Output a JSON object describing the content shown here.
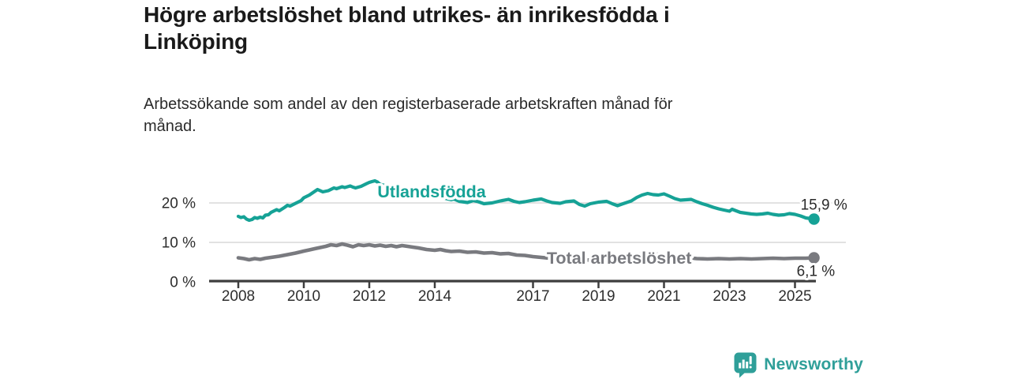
{
  "chart_data": {
    "type": "line",
    "title": "Högre arbetslöshet bland utrikes- än inrikesfödda i\nLinköping",
    "subtitle": "Arbetssökande som andel av den registerbaserade arbetskraften månad för\nmånad.",
    "grid": "horizontal",
    "legend": "inline-labels",
    "x_axis": {
      "ticks": [
        2008,
        2010,
        2012,
        2014,
        2017,
        2019,
        2021,
        2023,
        2025
      ],
      "labels": [
        "2008",
        "2010",
        "2012",
        "2014",
        "2017",
        "2019",
        "2021",
        "2023",
        "2025"
      ],
      "range": [
        2007.1,
        2025.9
      ]
    },
    "y_axis": {
      "ticks": [
        0,
        10,
        20
      ],
      "labels": [
        "0 %",
        "10 %",
        "20 %"
      ],
      "range": [
        0,
        27
      ],
      "unit": "%"
    },
    "series": [
      {
        "name": "Utlandsfödda",
        "color": "#16a296",
        "end_value": 15.9,
        "end_label": "15,9 %",
        "label_anchor": {
          "year": 2012.25,
          "value": 21.4
        },
        "end_label_offset": [
          -17,
          -12
        ],
        "points": [
          [
            2008.0,
            16.6
          ],
          [
            2008.08,
            16.3
          ],
          [
            2008.17,
            16.5
          ],
          [
            2008.25,
            15.9
          ],
          [
            2008.33,
            15.6
          ],
          [
            2008.42,
            15.8
          ],
          [
            2008.5,
            16.3
          ],
          [
            2008.58,
            16.1
          ],
          [
            2008.67,
            16.4
          ],
          [
            2008.75,
            16.2
          ],
          [
            2008.83,
            16.9
          ],
          [
            2008.92,
            17.0
          ],
          [
            2009.0,
            17.6
          ],
          [
            2009.17,
            18.3
          ],
          [
            2009.25,
            18.0
          ],
          [
            2009.42,
            18.9
          ],
          [
            2009.5,
            19.4
          ],
          [
            2009.58,
            19.2
          ],
          [
            2009.75,
            19.9
          ],
          [
            2009.92,
            20.6
          ],
          [
            2010.0,
            21.3
          ],
          [
            2010.17,
            22.0
          ],
          [
            2010.33,
            22.9
          ],
          [
            2010.42,
            23.4
          ],
          [
            2010.5,
            23.1
          ],
          [
            2010.58,
            22.8
          ],
          [
            2010.75,
            23.1
          ],
          [
            2010.92,
            23.8
          ],
          [
            2011.0,
            23.6
          ],
          [
            2011.17,
            24.1
          ],
          [
            2011.25,
            23.9
          ],
          [
            2011.42,
            24.3
          ],
          [
            2011.5,
            24.0
          ],
          [
            2011.58,
            23.8
          ],
          [
            2011.75,
            24.2
          ],
          [
            2011.92,
            24.9
          ],
          [
            2012.0,
            25.2
          ],
          [
            2012.08,
            25.4
          ],
          [
            2012.17,
            25.6
          ],
          [
            2012.25,
            25.3
          ],
          [
            2012.33,
            24.7
          ],
          [
            2012.5,
            24.4
          ],
          [
            2012.67,
            24.2
          ],
          [
            2012.83,
            23.9
          ],
          [
            2013.0,
            23.7
          ],
          [
            2013.25,
            23.4
          ],
          [
            2013.5,
            23.0
          ],
          [
            2013.75,
            22.4
          ],
          [
            2014.0,
            21.9
          ],
          [
            2014.25,
            21.3
          ],
          [
            2014.5,
            20.8
          ],
          [
            2014.58,
            21.0
          ],
          [
            2014.75,
            20.4
          ],
          [
            2015.0,
            20.1
          ],
          [
            2015.17,
            20.6
          ],
          [
            2015.33,
            20.3
          ],
          [
            2015.5,
            19.8
          ],
          [
            2015.75,
            20.0
          ],
          [
            2016.0,
            20.5
          ],
          [
            2016.25,
            20.9
          ],
          [
            2016.42,
            20.4
          ],
          [
            2016.58,
            20.1
          ],
          [
            2016.75,
            20.3
          ],
          [
            2017.0,
            20.7
          ],
          [
            2017.25,
            21.0
          ],
          [
            2017.42,
            20.5
          ],
          [
            2017.58,
            20.1
          ],
          [
            2017.83,
            19.9
          ],
          [
            2018.0,
            20.3
          ],
          [
            2018.25,
            20.5
          ],
          [
            2018.42,
            19.6
          ],
          [
            2018.58,
            19.2
          ],
          [
            2018.75,
            19.8
          ],
          [
            2019.0,
            20.2
          ],
          [
            2019.25,
            20.4
          ],
          [
            2019.42,
            19.8
          ],
          [
            2019.58,
            19.3
          ],
          [
            2019.75,
            19.8
          ],
          [
            2020.0,
            20.5
          ],
          [
            2020.17,
            21.4
          ],
          [
            2020.33,
            22.0
          ],
          [
            2020.5,
            22.4
          ],
          [
            2020.67,
            22.1
          ],
          [
            2020.83,
            22.0
          ],
          [
            2021.0,
            22.3
          ],
          [
            2021.17,
            21.7
          ],
          [
            2021.33,
            21.1
          ],
          [
            2021.5,
            20.7
          ],
          [
            2021.67,
            20.8
          ],
          [
            2021.83,
            20.9
          ],
          [
            2022.0,
            20.3
          ],
          [
            2022.17,
            19.8
          ],
          [
            2022.33,
            19.4
          ],
          [
            2022.5,
            18.9
          ],
          [
            2022.67,
            18.5
          ],
          [
            2022.83,
            18.2
          ],
          [
            2023.0,
            17.9
          ],
          [
            2023.08,
            18.4
          ],
          [
            2023.17,
            18.1
          ],
          [
            2023.33,
            17.6
          ],
          [
            2023.5,
            17.4
          ],
          [
            2023.67,
            17.2
          ],
          [
            2023.83,
            17.1
          ],
          [
            2024.0,
            17.2
          ],
          [
            2024.17,
            17.4
          ],
          [
            2024.33,
            17.1
          ],
          [
            2024.5,
            16.9
          ],
          [
            2024.67,
            17.0
          ],
          [
            2024.83,
            17.3
          ],
          [
            2025.0,
            17.1
          ],
          [
            2025.17,
            16.7
          ],
          [
            2025.33,
            16.2
          ],
          [
            2025.5,
            16.0
          ],
          [
            2025.58,
            15.9
          ]
        ]
      },
      {
        "name": "Total arbetslöshet",
        "color": "#797a7f",
        "end_value": 6.1,
        "end_label": "6,1 %",
        "label_anchor": {
          "year": 2017.42,
          "value": 4.6
        },
        "end_label_offset": [
          -22,
          23
        ],
        "points": [
          [
            2008.0,
            6.1
          ],
          [
            2008.17,
            5.9
          ],
          [
            2008.33,
            5.6
          ],
          [
            2008.5,
            5.9
          ],
          [
            2008.67,
            5.7
          ],
          [
            2008.83,
            6.0
          ],
          [
            2009.0,
            6.2
          ],
          [
            2009.25,
            6.5
          ],
          [
            2009.5,
            6.9
          ],
          [
            2009.75,
            7.3
          ],
          [
            2010.0,
            7.8
          ],
          [
            2010.17,
            8.1
          ],
          [
            2010.33,
            8.4
          ],
          [
            2010.5,
            8.7
          ],
          [
            2010.67,
            9.0
          ],
          [
            2010.83,
            9.4
          ],
          [
            2011.0,
            9.2
          ],
          [
            2011.17,
            9.6
          ],
          [
            2011.33,
            9.3
          ],
          [
            2011.5,
            8.9
          ],
          [
            2011.67,
            9.4
          ],
          [
            2011.83,
            9.2
          ],
          [
            2012.0,
            9.4
          ],
          [
            2012.17,
            9.1
          ],
          [
            2012.33,
            9.3
          ],
          [
            2012.5,
            9.0
          ],
          [
            2012.67,
            9.2
          ],
          [
            2012.83,
            8.9
          ],
          [
            2013.0,
            9.2
          ],
          [
            2013.17,
            9.0
          ],
          [
            2013.33,
            8.8
          ],
          [
            2013.5,
            8.6
          ],
          [
            2013.75,
            8.2
          ],
          [
            2014.0,
            8.0
          ],
          [
            2014.17,
            8.2
          ],
          [
            2014.33,
            7.9
          ],
          [
            2014.5,
            7.7
          ],
          [
            2014.75,
            7.8
          ],
          [
            2015.0,
            7.5
          ],
          [
            2015.25,
            7.6
          ],
          [
            2015.5,
            7.3
          ],
          [
            2015.75,
            7.4
          ],
          [
            2016.0,
            7.1
          ],
          [
            2016.25,
            7.2
          ],
          [
            2016.5,
            6.8
          ],
          [
            2016.75,
            6.7
          ],
          [
            2017.0,
            6.4
          ],
          [
            2017.25,
            6.2
          ],
          [
            2017.5,
            6.0
          ],
          [
            2017.75,
            5.9
          ],
          [
            2018.0,
            5.8
          ],
          [
            2018.5,
            5.6
          ],
          [
            2019.0,
            5.4
          ],
          [
            2019.5,
            5.5
          ],
          [
            2020.0,
            6.3
          ],
          [
            2020.33,
            7.2
          ],
          [
            2020.67,
            7.1
          ],
          [
            2021.0,
            6.8
          ],
          [
            2021.5,
            6.3
          ],
          [
            2022.0,
            5.9
          ],
          [
            2022.33,
            5.8
          ],
          [
            2022.67,
            5.9
          ],
          [
            2023.0,
            5.8
          ],
          [
            2023.33,
            5.9
          ],
          [
            2023.67,
            5.8
          ],
          [
            2024.0,
            5.9
          ],
          [
            2024.33,
            6.0
          ],
          [
            2024.67,
            5.9
          ],
          [
            2025.0,
            6.0
          ],
          [
            2025.33,
            6.0
          ],
          [
            2025.58,
            6.1
          ]
        ]
      }
    ]
  },
  "footer": {
    "brand": "Newsworthy",
    "logo_icon": "chart-speech-bubble-icon"
  },
  "colors": {
    "accent": "#16a296",
    "gray_series": "#797a7f",
    "grid": "#d8d8d8",
    "axis": "#3e3e3e",
    "title_text": "#1a1a1a",
    "body_text": "#2b2b2b",
    "tick_text": "#2e2e2e",
    "end_label_text": "#2b2b2b",
    "brand_teal": "#2f9f99"
  }
}
